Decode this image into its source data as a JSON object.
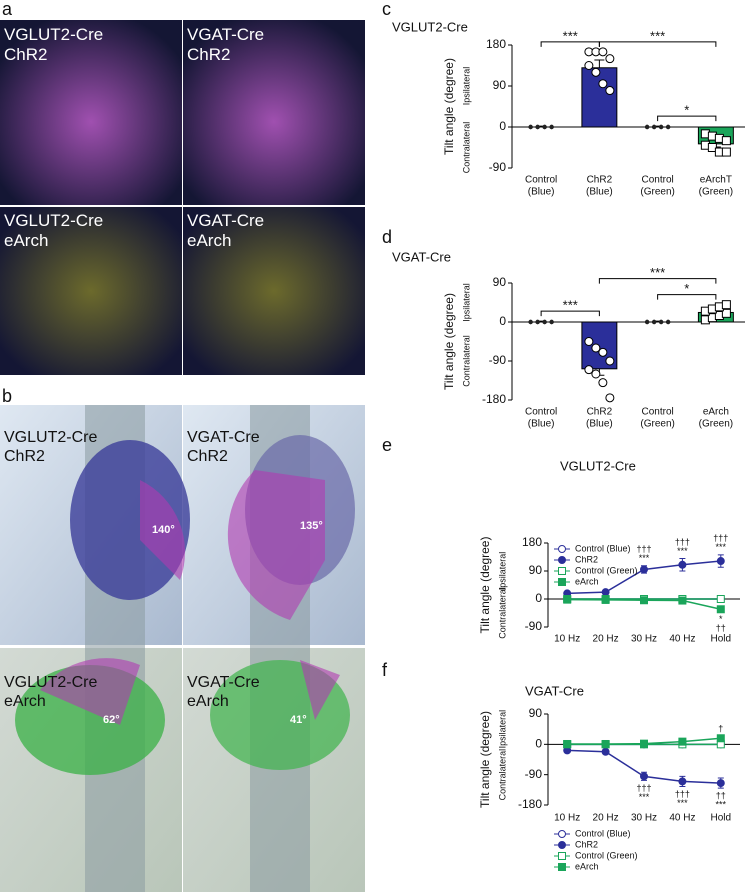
{
  "panel_labels": [
    "a",
    "b",
    "c",
    "d",
    "e",
    "f"
  ],
  "histology": [
    {
      "lines": [
        "VGLUT2-Cre",
        "ChR2"
      ]
    },
    {
      "lines": [
        "VGAT-Cre",
        "ChR2"
      ]
    },
    {
      "lines": [
        "VGLUT2-Cre",
        "eArch"
      ]
    },
    {
      "lines": [
        "VGAT-Cre",
        "eArch"
      ]
    }
  ],
  "photos": [
    {
      "lines": [
        "VGLUT2-Cre",
        "ChR2"
      ],
      "angle": "140°"
    },
    {
      "lines": [
        "VGAT-Cre",
        "ChR2"
      ],
      "angle": "135°"
    },
    {
      "lines": [
        "VGLUT2-Cre",
        "eArch"
      ],
      "angle": "62°"
    },
    {
      "lines": [
        "VGAT-Cre",
        "eArch"
      ],
      "angle": "41°"
    }
  ],
  "chart_data": [
    {
      "type": "bar",
      "title": "VGLUT2-Cre",
      "y_label": "Tilt angle (degree)",
      "side_labels": [
        "Ipsilateral",
        "Contralateral"
      ],
      "categories": [
        [
          "Control",
          "(Blue)"
        ],
        [
          "ChR2",
          "(Blue)"
        ],
        [
          "Control",
          "(Green)"
        ],
        [
          "eArchT",
          "(Green)"
        ]
      ],
      "values": [
        0,
        130,
        0,
        -37
      ],
      "errors": [
        2,
        17,
        2,
        7
      ],
      "colors": [
        "#ffffff",
        "#2b2f9a",
        "#ffffff",
        "#1aa55a"
      ],
      "points": [
        [
          0,
          0,
          0,
          0,
          0,
          0,
          0,
          0
        ],
        [
          165,
          165,
          165,
          150,
          135,
          120,
          95,
          80
        ],
        [
          0,
          0,
          0,
          0,
          0,
          0,
          0,
          0
        ],
        [
          -15,
          -20,
          -25,
          -30,
          -40,
          -45,
          -55,
          -55
        ]
      ],
      "point_markers": [
        "dot",
        "circle",
        "dot",
        "square"
      ],
      "significance": [
        {
          "text": "***",
          "pair": [
            0,
            1
          ]
        },
        {
          "text": "***",
          "pair": [
            1,
            3
          ]
        },
        {
          "text": "*",
          "pair": [
            2,
            3
          ]
        }
      ],
      "ylim": [
        -90,
        180
      ],
      "yticks": [
        -90,
        0,
        90,
        180
      ]
    },
    {
      "type": "bar",
      "title": "VGAT-Cre",
      "y_label": "Tilt angle (degree)",
      "side_labels": [
        "Ipsilateral",
        "Contralateral"
      ],
      "categories": [
        [
          "Control",
          "(Blue)"
        ],
        [
          "ChR2",
          "(Blue)"
        ],
        [
          "Control",
          "(Green)"
        ],
        [
          "eArch",
          "(Green)"
        ]
      ],
      "values": [
        0,
        -108,
        0,
        22
      ],
      "errors": [
        2,
        15,
        2,
        5
      ],
      "colors": [
        "#ffffff",
        "#2b2f9a",
        "#ffffff",
        "#1aa55a"
      ],
      "points": [
        [
          0,
          0,
          0,
          0,
          0,
          0,
          0,
          0
        ],
        [
          -45,
          -60,
          -70,
          -90,
          -110,
          -120,
          -140,
          -175
        ],
        [
          0,
          0,
          0,
          0,
          0,
          0,
          0,
          0
        ],
        [
          5,
          10,
          15,
          20,
          25,
          30,
          35,
          40
        ]
      ],
      "point_markers": [
        "dot",
        "circle",
        "dot",
        "square"
      ],
      "significance": [
        {
          "text": "***",
          "pair": [
            0,
            1
          ]
        },
        {
          "text": "***",
          "pair": [
            1,
            3
          ]
        },
        {
          "text": "*",
          "pair": [
            2,
            3
          ]
        }
      ],
      "ylim": [
        -180,
        90
      ],
      "yticks": [
        -180,
        -90,
        0,
        90
      ]
    },
    {
      "type": "line",
      "title": "VGLUT2-Cre",
      "y_label": "Tilt angle (degree)",
      "side_labels": [
        "Ipsilateral",
        "Contralateral"
      ],
      "categories": [
        "10 Hz",
        "20 Hz",
        "30 Hz",
        "40 Hz",
        "Hold"
      ],
      "series": [
        {
          "name": "Control (Blue)",
          "color": "#2b2f9a",
          "marker": "open-circle",
          "values": [
            0,
            0,
            0,
            0,
            0
          ]
        },
        {
          "name": "ChR2",
          "color": "#2b2f9a",
          "marker": "filled-circle",
          "values": [
            18,
            22,
            95,
            110,
            122
          ],
          "errors": [
            3,
            4,
            12,
            20,
            20
          ]
        },
        {
          "name": "Control (Green)",
          "color": "#1aa55a",
          "marker": "open-square",
          "values": [
            0,
            0,
            0,
            0,
            0
          ]
        },
        {
          "name": "eArch",
          "color": "#1aa55a",
          "marker": "filled-square",
          "values": [
            -2,
            -3,
            -4,
            -5,
            -33
          ],
          "errors": [
            2,
            2,
            2,
            3,
            8
          ]
        }
      ],
      "annotations": [
        {
          "series": 1,
          "index": 2,
          "lines": [
            "†††",
            "***"
          ]
        },
        {
          "series": 1,
          "index": 3,
          "lines": [
            "†††",
            "***"
          ]
        },
        {
          "series": 1,
          "index": 4,
          "lines": [
            "†††",
            "***"
          ]
        },
        {
          "series": 3,
          "index": 4,
          "lines": [
            "*",
            "††"
          ]
        }
      ],
      "legend": "upper left",
      "ylim": [
        -90,
        180
      ],
      "yticks": [
        -90,
        0,
        90,
        180
      ]
    },
    {
      "type": "line",
      "title": "VGAT-Cre",
      "y_label": "Tilt angle (degree)",
      "side_labels": [
        "Ipsilateral",
        "Contralateral"
      ],
      "categories": [
        "10 Hz",
        "20 Hz",
        "30 Hz",
        "40 Hz",
        "Hold"
      ],
      "series": [
        {
          "name": "Control (Blue)",
          "color": "#2b2f9a",
          "marker": "open-circle",
          "values": [
            0,
            0,
            0,
            0,
            0
          ]
        },
        {
          "name": "ChR2",
          "color": "#2b2f9a",
          "marker": "filled-circle",
          "values": [
            -18,
            -22,
            -95,
            -110,
            -115
          ],
          "errors": [
            3,
            4,
            12,
            15,
            15
          ]
        },
        {
          "name": "Control (Green)",
          "color": "#1aa55a",
          "marker": "open-square",
          "values": [
            0,
            0,
            0,
            0,
            0
          ]
        },
        {
          "name": "eArch",
          "color": "#1aa55a",
          "marker": "filled-square",
          "values": [
            1,
            1,
            2,
            8,
            18
          ],
          "errors": [
            1,
            1,
            2,
            3,
            6
          ]
        }
      ],
      "annotations": [
        {
          "series": 1,
          "index": 2,
          "lines": [
            "†††",
            "***"
          ]
        },
        {
          "series": 1,
          "index": 3,
          "lines": [
            "†††",
            "***"
          ]
        },
        {
          "series": 1,
          "index": 4,
          "lines": [
            "††",
            "***"
          ]
        },
        {
          "series": 3,
          "index": 4,
          "lines": [
            "†"
          ]
        }
      ],
      "legend": "lower left",
      "ylim": [
        -180,
        90
      ],
      "yticks": [
        -180,
        -90,
        0,
        90
      ]
    }
  ]
}
